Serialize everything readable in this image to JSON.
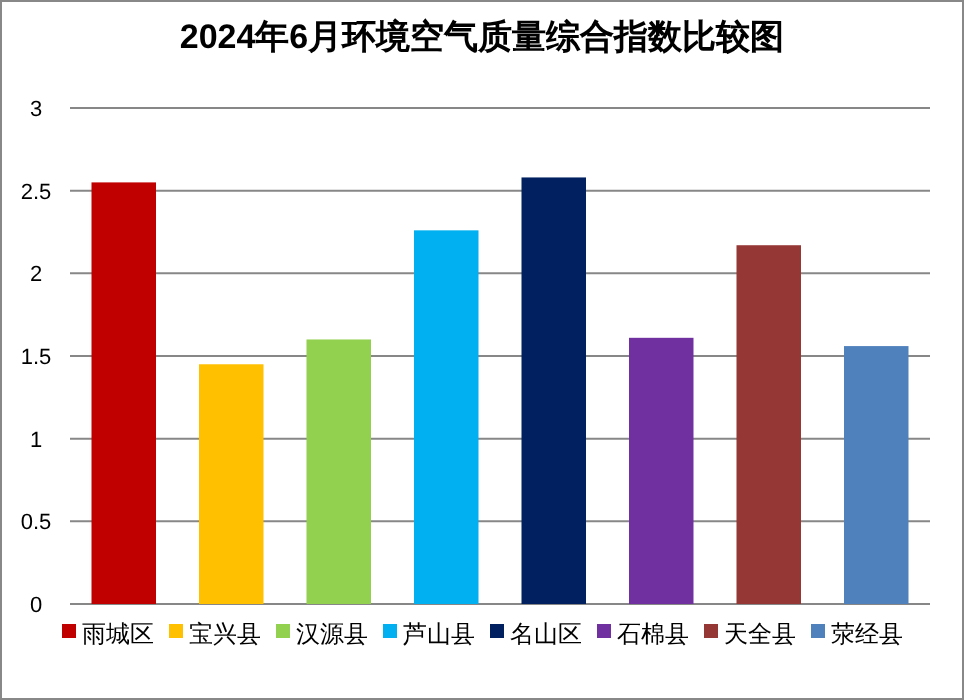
{
  "chart_data": {
    "type": "bar",
    "title": "2024年6月环境空气质量综合指数比较图",
    "categories": [
      null,
      null,
      null,
      null,
      null,
      null,
      null,
      null
    ],
    "series": [
      {
        "name": "雨城区",
        "color": "#c00000",
        "values": [
          2.55,
          null,
          null,
          null,
          null,
          null,
          null,
          null
        ]
      },
      {
        "name": "宝兴县",
        "color": "#ffc000",
        "values": [
          null,
          1.45,
          null,
          null,
          null,
          null,
          null,
          null
        ]
      },
      {
        "name": "汉源县",
        "color": "#92d050",
        "values": [
          null,
          null,
          1.6,
          null,
          null,
          null,
          null,
          null
        ]
      },
      {
        "name": "芦山县",
        "color": "#00b0f0",
        "values": [
          null,
          null,
          null,
          2.26,
          null,
          null,
          null,
          null
        ]
      },
      {
        "name": "名山区",
        "color": "#002060",
        "values": [
          null,
          null,
          null,
          null,
          2.58,
          null,
          null,
          null
        ]
      },
      {
        "name": "石棉县",
        "color": "#7030a0",
        "values": [
          null,
          null,
          null,
          null,
          null,
          1.61,
          null,
          null
        ]
      },
      {
        "name": "天全县",
        "color": "#953735",
        "values": [
          null,
          null,
          null,
          null,
          null,
          null,
          2.17,
          null
        ]
      },
      {
        "name": "荥经县",
        "color": "#4f81bd",
        "values": [
          null,
          null,
          null,
          null,
          null,
          null,
          null,
          1.56
        ]
      }
    ],
    "ylim": [
      0,
      3
    ],
    "yticks": [
      0,
      0.5,
      1,
      1.5,
      2,
      2.5,
      3
    ],
    "grid": "y",
    "legend": "bottom",
    "tick_labels": "y"
  }
}
